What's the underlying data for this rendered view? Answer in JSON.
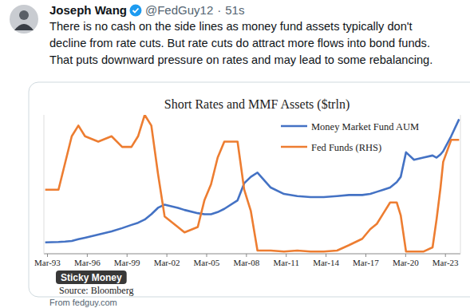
{
  "tweet": {
    "author": "Joseph Wang",
    "handle": "@FedGuy12",
    "separator": "·",
    "time": "51s",
    "text_lines": [
      "There is no cash on the side lines as money fund assets typically don't",
      "decline from rate cuts. But rate cuts do attract more flows into bond funds.",
      "That puts downward pressure on rates and may lead to some rebalancing."
    ],
    "media_label": "Sticky Money",
    "link_text": "From fedguy.com"
  },
  "chart_data": {
    "type": "line",
    "title": "Short Rates and MMF Assets ($trln)",
    "source": "Source: Bloomberg",
    "x": [
      1993.0,
      1994.0,
      1994.5,
      1995.0,
      1995.5,
      1996.0,
      1997.0,
      1998.0,
      1998.8,
      1999.5,
      2000.0,
      2000.5,
      2001.0,
      2001.5,
      2002.0,
      2003.0,
      2003.5,
      2004.5,
      2005.0,
      2005.5,
      2006.0,
      2006.5,
      2007.5,
      2008.0,
      2008.5,
      2009.0,
      2010.0,
      2011.0,
      2012.0,
      2013.0,
      2014.0,
      2015.0,
      2015.9,
      2016.9,
      2017.5,
      2018.0,
      2018.5,
      2019.0,
      2019.5,
      2019.8,
      2020.2,
      2020.8,
      2021.5,
      2022.2,
      2022.5,
      2022.8,
      2023.0,
      2023.6,
      2024.2
    ],
    "series": [
      {
        "name": "Money Market Fund AUM",
        "color": "#4472c4",
        "values": [
          0.53,
          0.55,
          0.57,
          0.6,
          0.68,
          0.75,
          0.9,
          1.05,
          1.2,
          1.35,
          1.45,
          1.6,
          1.85,
          2.15,
          2.3,
          2.15,
          2.05,
          1.9,
          1.85,
          1.85,
          1.95,
          2.1,
          2.5,
          3.3,
          3.6,
          3.8,
          3.1,
          2.8,
          2.7,
          2.65,
          2.65,
          2.7,
          2.75,
          2.75,
          2.8,
          2.9,
          3.0,
          3.1,
          3.35,
          3.6,
          4.75,
          4.4,
          4.5,
          4.6,
          4.5,
          4.65,
          4.8,
          5.5,
          6.3
        ]
      },
      {
        "name": "Fed Funds (RHS)",
        "color": "#ed7d31",
        "axis": "y2",
        "values": [
          3.0,
          3.0,
          4.25,
          5.5,
          6.0,
          5.5,
          5.25,
          5.5,
          5.0,
          5.0,
          5.5,
          6.5,
          6.0,
          3.75,
          1.75,
          1.25,
          1.0,
          1.25,
          2.5,
          3.25,
          4.5,
          5.25,
          5.25,
          3.0,
          2.0,
          0.15,
          0.15,
          0.1,
          0.15,
          0.1,
          0.1,
          0.15,
          0.4,
          0.7,
          1.15,
          1.4,
          1.9,
          2.4,
          2.4,
          1.8,
          0.1,
          0.1,
          0.1,
          0.3,
          1.6,
          3.1,
          4.3,
          5.33,
          5.33
        ]
      }
    ],
    "xlim": [
      1992.9,
      2024.3
    ],
    "xticks": [
      {
        "value": 1993.17,
        "label": "Mar-93"
      },
      {
        "value": 1996.17,
        "label": "Mar-96"
      },
      {
        "value": 1999.17,
        "label": "Mar-99"
      },
      {
        "value": 2002.17,
        "label": "Mar-02"
      },
      {
        "value": 2005.17,
        "label": "Mar-05"
      },
      {
        "value": 2008.17,
        "label": "Mar-08"
      },
      {
        "value": 2011.17,
        "label": "Mar-11"
      },
      {
        "value": 2014.17,
        "label": "Mar-14"
      },
      {
        "value": 2017.17,
        "label": "Mar-17"
      },
      {
        "value": 2020.17,
        "label": "Mar-20"
      },
      {
        "value": 2023.17,
        "label": "Mar-23"
      }
    ],
    "ylim": [
      0,
      6.5
    ],
    "yticks": [],
    "y2lim": [
      0,
      6.5
    ],
    "y2ticks": [],
    "tick_labels": "x",
    "grid": false,
    "legend": "top-right"
  }
}
